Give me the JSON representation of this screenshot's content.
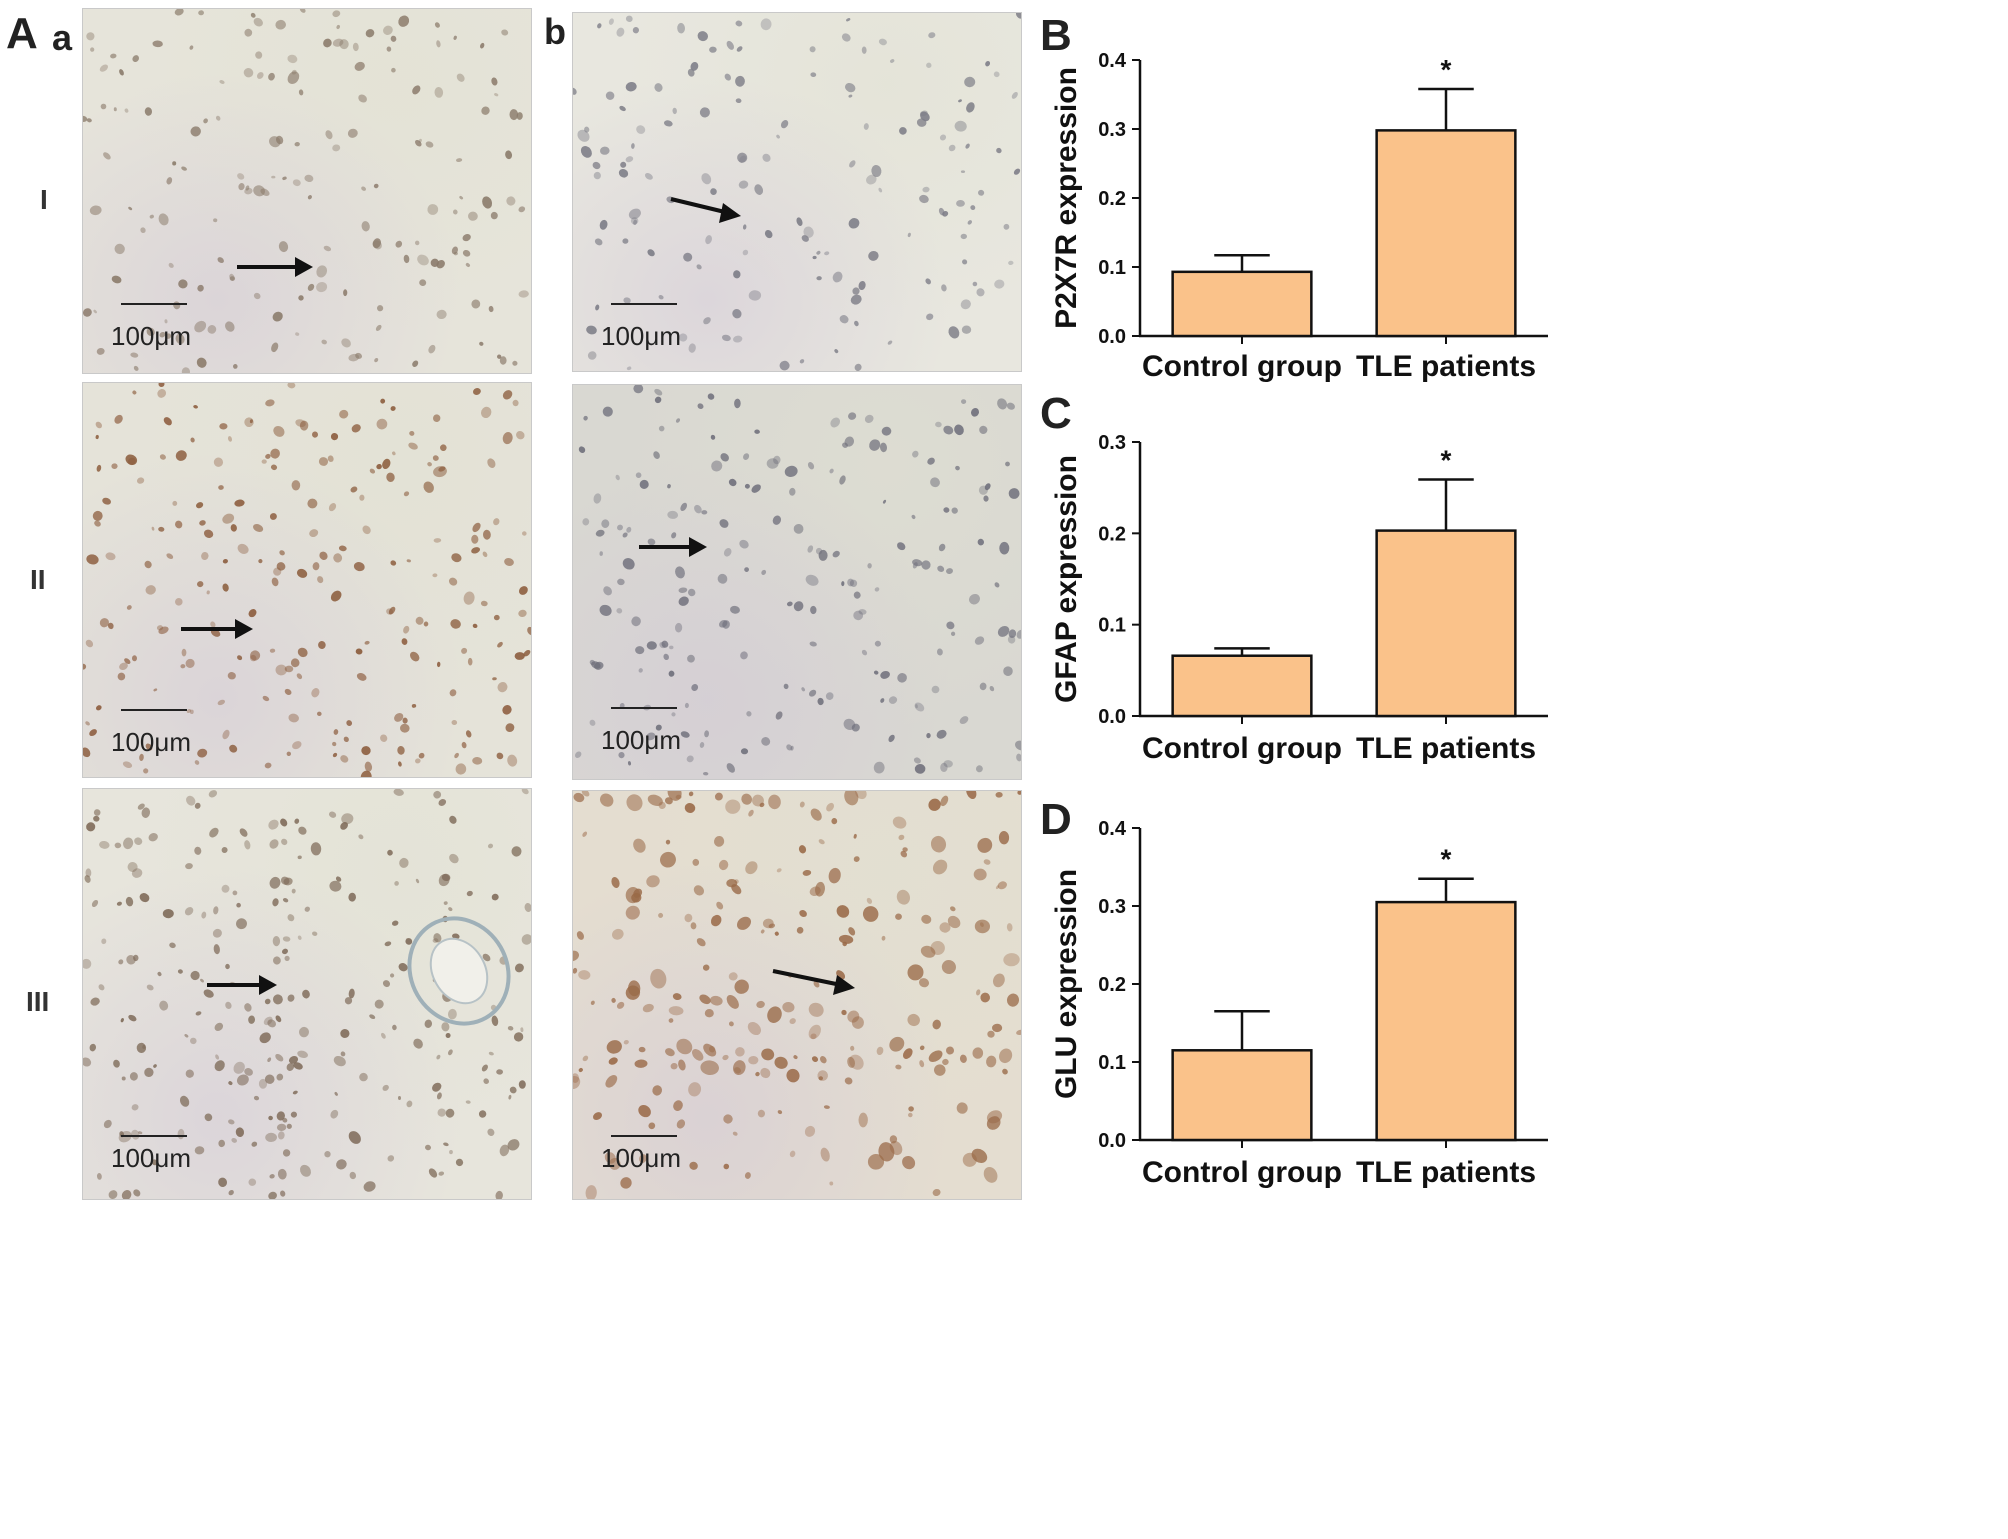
{
  "panel_labels": {
    "A": "A",
    "a": "a",
    "b": "b",
    "B": "B",
    "C": "C",
    "D": "D"
  },
  "row_labels": [
    "I",
    "II",
    "III"
  ],
  "scale_label": "100μm",
  "micrographs": [
    {
      "col": "a",
      "row": "I",
      "tone": "#e6e4da",
      "cells": "#8a7a6a",
      "density": 170
    },
    {
      "col": "b",
      "row": "I",
      "tone": "#e8e7df",
      "cells": "#7c7c86",
      "density": 150
    },
    {
      "col": "a",
      "row": "II",
      "tone": "#e5e3d9",
      "cells": "#8a5a3a",
      "density": 230
    },
    {
      "col": "b",
      "row": "II",
      "tone": "#d9d8d2",
      "cells": "#6e6e7a",
      "density": 200
    },
    {
      "col": "a",
      "row": "III",
      "tone": "#e7e5dc",
      "cells": "#7e6a58",
      "density": 260
    },
    {
      "col": "b",
      "row": "III",
      "tone": "#e4ddd0",
      "cells": "#9a6a48",
      "density": 240
    }
  ],
  "colors": {
    "bar_fill": "#fac28a",
    "bar_stroke": "#111111",
    "axis": "#111111"
  },
  "chart_data": [
    {
      "type": "bar",
      "panel": "B",
      "categories": [
        "Control group",
        "TLE patients"
      ],
      "values": [
        0.093,
        0.298
      ],
      "errors": [
        0.024,
        0.06
      ],
      "annotations": [
        "",
        "*"
      ],
      "ylabel": "P2X7R expression",
      "ylim": [
        0,
        0.4
      ],
      "yticks": [
        "0.0",
        "0.1",
        "0.2",
        "0.3",
        "0.4"
      ]
    },
    {
      "type": "bar",
      "panel": "C",
      "categories": [
        "Control group",
        "TLE patients"
      ],
      "values": [
        0.066,
        0.203
      ],
      "errors": [
        0.008,
        0.056
      ],
      "annotations": [
        "",
        "*"
      ],
      "ylabel": "GFAP expression",
      "ylim": [
        0,
        0.3
      ],
      "yticks": [
        "0.0",
        "0.1",
        "0.2",
        "0.3"
      ]
    },
    {
      "type": "bar",
      "panel": "D",
      "categories": [
        "Control group",
        "TLE patients"
      ],
      "values": [
        0.115,
        0.305
      ],
      "errors": [
        0.05,
        0.03
      ],
      "annotations": [
        "",
        "*"
      ],
      "ylabel": "GLU expression",
      "ylim": [
        0,
        0.4
      ],
      "yticks": [
        "0.0",
        "0.1",
        "0.2",
        "0.3",
        "0.4"
      ]
    }
  ]
}
